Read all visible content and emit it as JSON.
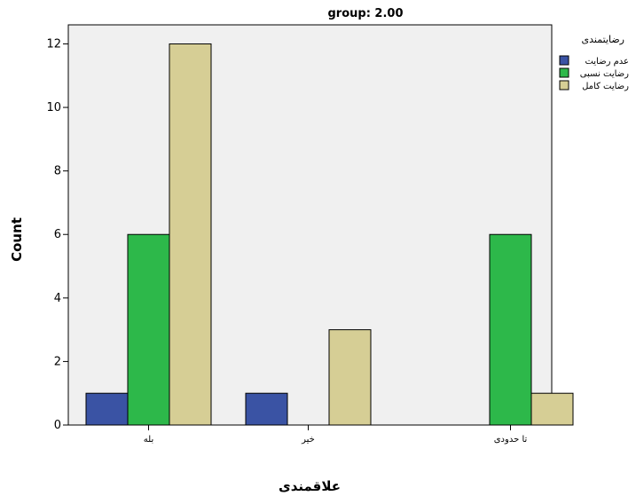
{
  "chart_data": {
    "type": "bar",
    "title": "group: 2.00",
    "xlabel": "علاقمندی",
    "ylabel": "Count",
    "ylim": [
      0,
      12.6
    ],
    "yticks": [
      0,
      2,
      4,
      6,
      8,
      10,
      12
    ],
    "categories": [
      "بله",
      "خیر",
      "تا حدودی"
    ],
    "legend_title": "رضایتمندی",
    "legend_position": "right",
    "series": [
      {
        "name": "عدم رضایت",
        "color": "#3A53A4",
        "values": [
          1,
          1,
          0
        ]
      },
      {
        "name": "رضایت نسبی",
        "color": "#2DB84A",
        "values": [
          6,
          0,
          6
        ]
      },
      {
        "name": "رضایت کامل",
        "color": "#D6CE95",
        "values": [
          12,
          3,
          1
        ]
      }
    ],
    "plot_background": "#F0F0F0",
    "grid": false
  }
}
